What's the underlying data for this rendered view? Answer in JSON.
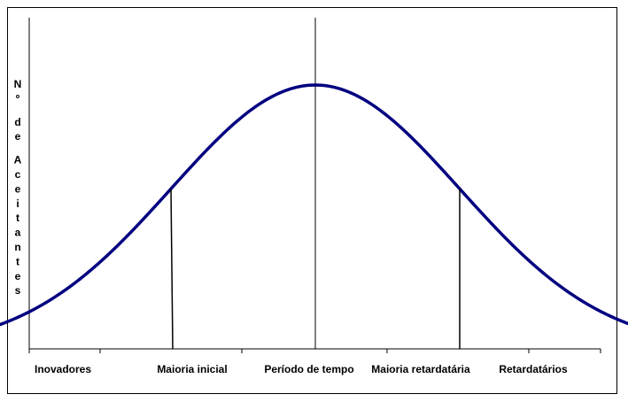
{
  "chart_data": {
    "type": "line",
    "title": "",
    "ylabel": "Nº de Aceitantes",
    "xlabel": "",
    "categories": [
      "Inovadores",
      "Maioria inicial",
      "Período de tempo",
      "Maioria retardatária",
      "Retardatários"
    ],
    "series": [
      {
        "color": "#000080",
        "shape": "normal-distribution",
        "mean": 0,
        "std_dev": 1,
        "x_range": [
          -3.3,
          3.3
        ]
      }
    ],
    "dividers": [
      -1,
      0,
      1
    ],
    "grid": false,
    "legend": "none"
  }
}
